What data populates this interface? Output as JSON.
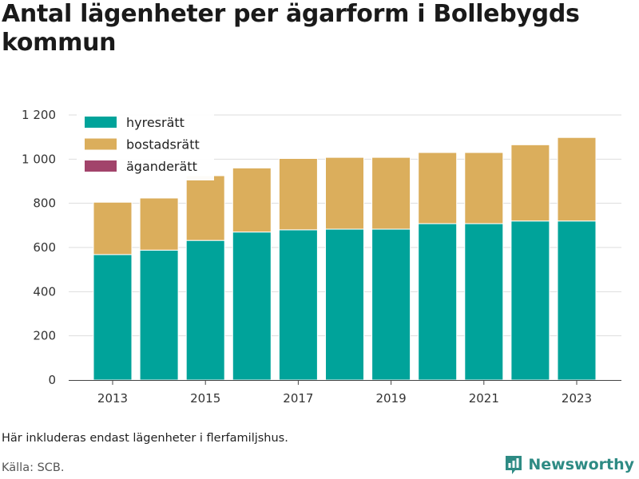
{
  "title": "Antal lägenheter per ägarform i Bollebygds kommun",
  "note": "Här inkluderas endast lägenheter i flerfamiljshus.",
  "source": "Källa: SCB.",
  "brand": {
    "name": "Newsworthy",
    "icon": "newsworthy-logo-icon",
    "color": "#2e8b84"
  },
  "chart_data": {
    "type": "bar",
    "stacked": true,
    "title": "Antal lägenheter per ägarform i Bollebygds kommun",
    "categories": [
      2013,
      2014,
      2015,
      2016,
      2017,
      2018,
      2019,
      2020,
      2021,
      2022,
      2023
    ],
    "x_tick_labels": [
      "2013",
      "2015",
      "2017",
      "2019",
      "2021",
      "2023"
    ],
    "ylim": [
      0,
      1200
    ],
    "y_ticks": [
      0,
      200,
      400,
      600,
      800,
      1000,
      1200
    ],
    "y_tick_labels": [
      "0",
      "200",
      "400",
      "600",
      "800",
      "1 000",
      "1 200"
    ],
    "grid": true,
    "legend_position": "top-left",
    "series": [
      {
        "name": "hyresrätt",
        "color": "#00a39a",
        "values": [
          568,
          588,
          632,
          670,
          680,
          683,
          683,
          708,
          708,
          720,
          720
        ]
      },
      {
        "name": "bostadsrätt",
        "color": "#dbae5c",
        "values": [
          237,
          236,
          293,
          290,
          323,
          325,
          325,
          322,
          322,
          345,
          378
        ]
      },
      {
        "name": "äganderätt",
        "color": "#a2446b",
        "values": [
          0,
          0,
          0,
          0,
          0,
          0,
          0,
          0,
          0,
          0,
          0
        ]
      }
    ]
  }
}
